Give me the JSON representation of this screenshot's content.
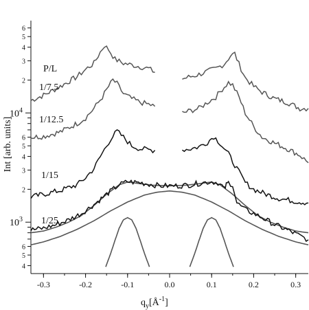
{
  "chart_data": {
    "type": "line",
    "xlabel": "q",
    "xlabel_sub": "y",
    "xlabel_units": "[Å",
    "xlabel_sup": "-1",
    "xlabel_close": "]",
    "ylabel": "Int [arb. units]",
    "yscale": "log",
    "xlim": [
      -0.33,
      0.33
    ],
    "ylim": [
      380,
      70000
    ],
    "x_ticks": [
      {
        "v": -0.3,
        "label": "-0.3"
      },
      {
        "v": -0.2,
        "label": "-0.2"
      },
      {
        "v": -0.1,
        "label": "-0.1"
      },
      {
        "v": 0.0,
        "label": "0.0"
      },
      {
        "v": 0.1,
        "label": "0.1"
      },
      {
        "v": 0.2,
        "label": "0.2"
      },
      {
        "v": 0.3,
        "label": "0.3"
      }
    ],
    "y_major_ticks": [
      {
        "v": 1000,
        "base": "10",
        "exp": "3"
      },
      {
        "v": 10000,
        "base": "10",
        "exp": "4"
      }
    ],
    "y_minor_ticks": [
      {
        "v": 400,
        "label": "4"
      },
      {
        "v": 500,
        "label": "5"
      },
      {
        "v": 600,
        "label": "6"
      },
      {
        "v": 2000,
        "label": "2"
      },
      {
        "v": 3000,
        "label": "3"
      },
      {
        "v": 4000,
        "label": "4"
      },
      {
        "v": 5000,
        "label": "5"
      },
      {
        "v": 6000,
        "label": "6"
      },
      {
        "v": 20000,
        "label": "2"
      },
      {
        "v": 30000,
        "label": "3"
      },
      {
        "v": 40000,
        "label": "4"
      },
      {
        "v": 50000,
        "label": "5"
      },
      {
        "v": 60000,
        "label": "6"
      }
    ],
    "y_unlabeled_ticks": [
      700,
      800,
      900,
      7000,
      8000,
      9000
    ],
    "legend_title": "P/L",
    "series": [
      {
        "name": "1/7.5",
        "color": "#555555",
        "segments": [
          [
            [
              -0.33,
              13000
            ],
            [
              -0.3,
              14500
            ],
            [
              -0.26,
              17500
            ],
            [
              -0.22,
              21500
            ],
            [
              -0.2,
              25000
            ],
            [
              -0.18,
              28500
            ],
            [
              -0.165,
              36000
            ],
            [
              -0.155,
              41500
            ],
            [
              -0.145,
              38000
            ],
            [
              -0.13,
              31000
            ],
            [
              -0.11,
              28500
            ],
            [
              -0.09,
              27500
            ],
            [
              -0.07,
              26500
            ],
            [
              -0.05,
              25500
            ],
            [
              -0.035,
              23500
            ]
          ],
          [
            [
              0.03,
              20500
            ],
            [
              0.05,
              21500
            ],
            [
              0.07,
              22500
            ],
            [
              0.09,
              24000
            ],
            [
              0.11,
              25500
            ],
            [
              0.13,
              28000
            ],
            [
              0.145,
              33500
            ],
            [
              0.155,
              35000
            ],
            [
              0.165,
              28000
            ],
            [
              0.18,
              21000
            ],
            [
              0.2,
              17500
            ],
            [
              0.22,
              15500
            ],
            [
              0.25,
              13500
            ],
            [
              0.28,
              12500
            ],
            [
              0.31,
              11000
            ],
            [
              0.33,
              11000
            ]
          ]
        ]
      },
      {
        "name": "1/12.5",
        "color": "#555555",
        "segments": [
          [
            [
              -0.33,
              6000
            ],
            [
              -0.3,
              6100
            ],
            [
              -0.26,
              6700
            ],
            [
              -0.22,
              8000
            ],
            [
              -0.2,
              9000
            ],
            [
              -0.18,
              11000
            ],
            [
              -0.16,
              14000
            ],
            [
              -0.145,
              17500
            ],
            [
              -0.135,
              20000
            ],
            [
              -0.125,
              18500
            ],
            [
              -0.11,
              15000
            ],
            [
              -0.09,
              13500
            ],
            [
              -0.07,
              12500
            ],
            [
              -0.05,
              12000
            ],
            [
              -0.035,
              11500
            ]
          ],
          [
            [
              0.03,
              10000
            ],
            [
              0.05,
              10500
            ],
            [
              0.07,
              11000
            ],
            [
              0.09,
              12500
            ],
            [
              0.11,
              14000
            ],
            [
              0.125,
              16500
            ],
            [
              0.14,
              19000
            ],
            [
              0.15,
              18000
            ],
            [
              0.165,
              14000
            ],
            [
              0.18,
              10000
            ],
            [
              0.2,
              7500
            ],
            [
              0.22,
              6000
            ],
            [
              0.25,
              5300
            ],
            [
              0.28,
              4700
            ],
            [
              0.31,
              4100
            ],
            [
              0.33,
              3500
            ]
          ]
        ]
      },
      {
        "name": "1/15",
        "color": "#111111",
        "segments": [
          [
            [
              -0.33,
              1700
            ],
            [
              -0.3,
              1800
            ],
            [
              -0.26,
              1950
            ],
            [
              -0.22,
              2200
            ],
            [
              -0.2,
              2550
            ],
            [
              -0.18,
              3100
            ],
            [
              -0.16,
              4300
            ],
            [
              -0.14,
              5800
            ],
            [
              -0.125,
              6800
            ],
            [
              -0.11,
              6000
            ],
            [
              -0.09,
              5000
            ],
            [
              -0.07,
              4700
            ],
            [
              -0.05,
              4600
            ],
            [
              -0.035,
              4550
            ]
          ],
          [
            [
              0.03,
              4600
            ],
            [
              0.05,
              4700
            ],
            [
              0.07,
              4900
            ],
            [
              0.09,
              5400
            ],
            [
              0.105,
              6100
            ],
            [
              0.12,
              5300
            ],
            [
              0.14,
              4200
            ],
            [
              0.16,
              3100
            ],
            [
              0.18,
              2300
            ],
            [
              0.2,
              2000
            ],
            [
              0.23,
              1800
            ],
            [
              0.26,
              1650
            ],
            [
              0.3,
              1550
            ],
            [
              0.33,
              1500
            ]
          ]
        ]
      },
      {
        "name": "1/25",
        "color": "#111111",
        "segments": [
          [
            [
              -0.33,
              850
            ],
            [
              -0.3,
              880
            ],
            [
              -0.27,
              950
            ],
            [
              -0.24,
              1050
            ],
            [
              -0.21,
              1200
            ],
            [
              -0.18,
              1450
            ],
            [
              -0.15,
              1800
            ],
            [
              -0.12,
              2200
            ],
            [
              -0.1,
              2350
            ],
            [
              -0.07,
              2300
            ],
            [
              -0.04,
              2200
            ],
            [
              -0.02,
              2150
            ],
            [
              0.0,
              2150
            ],
            [
              0.02,
              2150
            ],
            [
              0.05,
              2200
            ],
            [
              0.08,
              2300
            ],
            [
              0.1,
              2350
            ],
            [
              0.115,
              2300
            ],
            [
              0.125,
              2150
            ],
            [
              0.13,
              2000
            ],
            [
              0.135,
              2200
            ],
            [
              0.14,
              2300
            ],
            [
              0.15,
              2200
            ],
            [
              0.16,
              1500
            ],
            [
              0.18,
              1300
            ],
            [
              0.2,
              1200
            ],
            [
              0.22,
              1100
            ],
            [
              0.25,
              950
            ],
            [
              0.28,
              850
            ],
            [
              0.31,
              750
            ],
            [
              0.33,
              690
            ]
          ]
        ]
      }
    ],
    "fits": [
      {
        "name": "fit-total",
        "color": "#555555",
        "points": [
          [
            -0.33,
            800
          ],
          [
            -0.3,
            830
          ],
          [
            -0.27,
            900
          ],
          [
            -0.24,
            1000
          ],
          [
            -0.21,
            1150
          ],
          [
            -0.18,
            1420
          ],
          [
            -0.15,
            1800
          ],
          [
            -0.12,
            2200
          ],
          [
            -0.1,
            2330
          ],
          [
            -0.07,
            2250
          ],
          [
            -0.04,
            2180
          ],
          [
            0.0,
            2150
          ],
          [
            0.04,
            2180
          ],
          [
            0.07,
            2250
          ],
          [
            0.1,
            2330
          ],
          [
            0.12,
            2200
          ],
          [
            0.15,
            1800
          ],
          [
            0.18,
            1420
          ],
          [
            0.21,
            1150
          ],
          [
            0.24,
            1000
          ],
          [
            0.27,
            900
          ],
          [
            0.3,
            830
          ],
          [
            0.33,
            800
          ]
        ]
      },
      {
        "name": "fit-broad",
        "color": "#555555",
        "points": [
          [
            -0.33,
            620
          ],
          [
            -0.3,
            660
          ],
          [
            -0.26,
            740
          ],
          [
            -0.22,
            860
          ],
          [
            -0.18,
            1030
          ],
          [
            -0.14,
            1270
          ],
          [
            -0.1,
            1530
          ],
          [
            -0.06,
            1770
          ],
          [
            -0.03,
            1880
          ],
          [
            0.0,
            1930
          ],
          [
            0.03,
            1880
          ],
          [
            0.06,
            1770
          ],
          [
            0.1,
            1530
          ],
          [
            0.14,
            1270
          ],
          [
            0.18,
            1030
          ],
          [
            0.22,
            860
          ],
          [
            0.26,
            740
          ],
          [
            0.3,
            660
          ],
          [
            0.33,
            620
          ]
        ]
      },
      {
        "name": "fit-peak-left",
        "color": "#555555",
        "points": [
          [
            -0.152,
            390
          ],
          [
            -0.14,
            520
          ],
          [
            -0.13,
            680
          ],
          [
            -0.12,
            880
          ],
          [
            -0.11,
            1050
          ],
          [
            -0.1,
            1100
          ],
          [
            -0.09,
            1050
          ],
          [
            -0.08,
            880
          ],
          [
            -0.07,
            680
          ],
          [
            -0.06,
            520
          ],
          [
            -0.048,
            390
          ]
        ]
      },
      {
        "name": "fit-peak-right",
        "color": "#555555",
        "points": [
          [
            0.048,
            390
          ],
          [
            0.06,
            520
          ],
          [
            0.07,
            680
          ],
          [
            0.08,
            880
          ],
          [
            0.09,
            1050
          ],
          [
            0.1,
            1100
          ],
          [
            0.11,
            1050
          ],
          [
            0.12,
            880
          ],
          [
            0.13,
            680
          ],
          [
            0.14,
            520
          ],
          [
            0.152,
            390
          ]
        ]
      }
    ]
  }
}
